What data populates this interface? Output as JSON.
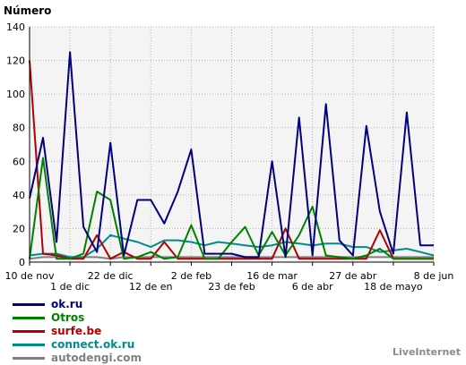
{
  "chart_data": {
    "type": "line",
    "ylabel": "Número",
    "ylim": [
      0,
      140
    ],
    "yticks": [
      0,
      20,
      40,
      60,
      80,
      100,
      120,
      140
    ],
    "grid": true,
    "legend_position": "bottom-left",
    "xtick_labels_row1": [
      {
        "label": "10 de nov",
        "index": 0
      },
      {
        "label": "22 de dic",
        "index": 6
      },
      {
        "label": "2 de feb",
        "index": 12
      },
      {
        "label": "16 de mar",
        "index": 18
      },
      {
        "label": "27 de abr",
        "index": 24
      },
      {
        "label": "8 de jun",
        "index": 30
      }
    ],
    "xtick_labels_row2": [
      {
        "label": "1 de dic",
        "index": 3
      },
      {
        "label": "12 de en",
        "index": 9
      },
      {
        "label": "23 de feb",
        "index": 15
      },
      {
        "label": "6 de abr",
        "index": 21
      },
      {
        "label": "18 de mayo",
        "index": 27
      }
    ],
    "num_points": 31,
    "series": [
      {
        "name": "ok.ru",
        "color": "#000080",
        "values": [
          38,
          74,
          12,
          125,
          21,
          6,
          71,
          4,
          37,
          37,
          23,
          42,
          67,
          5,
          5,
          5,
          3,
          3,
          60,
          3,
          86,
          4,
          94,
          13,
          4,
          81,
          30,
          5,
          89,
          10,
          10
        ]
      },
      {
        "name": "Otros",
        "color": "#008000",
        "values": [
          2,
          62,
          2,
          2,
          5,
          42,
          37,
          2,
          3,
          6,
          2,
          3,
          22,
          2,
          2,
          12,
          21,
          4,
          18,
          4,
          16,
          33,
          4,
          3,
          2,
          4,
          8,
          2,
          2,
          2,
          2
        ]
      },
      {
        "name": "surfe.be",
        "color": "#b00000",
        "values": [
          120,
          5,
          4,
          2,
          2,
          16,
          2,
          6,
          2,
          2,
          12,
          2,
          2,
          2,
          2,
          2,
          2,
          2,
          2,
          20,
          2,
          2,
          2,
          2,
          2,
          2,
          19,
          2,
          2,
          2,
          2
        ]
      },
      {
        "name": "connect.ok.ru",
        "color": "#008b8b",
        "values": [
          4,
          5,
          5,
          3,
          3,
          8,
          16,
          14,
          12,
          9,
          13,
          13,
          12,
          10,
          12,
          11,
          10,
          9,
          10,
          12,
          11,
          10,
          11,
          11,
          9,
          9,
          6,
          7,
          8,
          6,
          4
        ]
      },
      {
        "name": "autodengi.com",
        "color": "#808080",
        "values": [
          2,
          3,
          3,
          3,
          3,
          3,
          2,
          3,
          3,
          3,
          3,
          3,
          3,
          3,
          3,
          3,
          3,
          3,
          3,
          3,
          3,
          3,
          3,
          3,
          3,
          3,
          3,
          3,
          3,
          3,
          3
        ]
      }
    ]
  },
  "footer": {
    "brand": "LiveInternet"
  }
}
